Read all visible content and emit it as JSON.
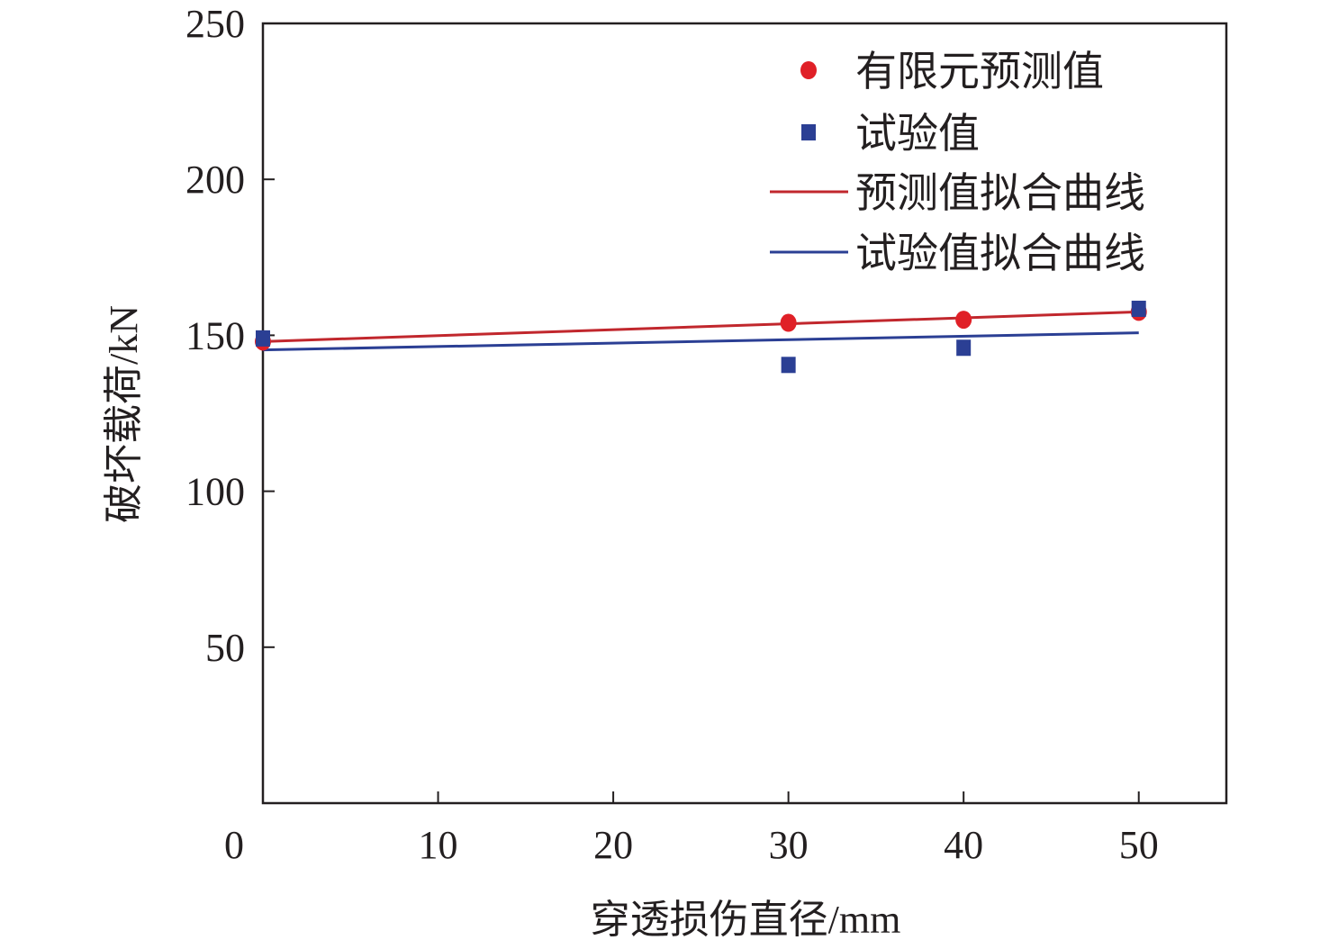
{
  "chart_data": {
    "type": "scatter",
    "title": "",
    "xlabel": "穿透损伤直径/mm",
    "ylabel": "破坏载荷/kN",
    "xlim": [
      0,
      55
    ],
    "ylim": [
      0,
      250
    ],
    "xticks": [
      0,
      10,
      20,
      30,
      40,
      50
    ],
    "yticks": [
      50,
      100,
      150,
      200,
      250
    ],
    "grid": false,
    "legend_position": "top-right",
    "series": [
      {
        "name": "有限元预测值",
        "kind": "points",
        "marker": "circle",
        "color": "#e02027",
        "x": [
          0,
          30,
          40,
          50
        ],
        "y": [
          148,
          154,
          155,
          157.5
        ]
      },
      {
        "name": "试验值",
        "kind": "points",
        "marker": "square",
        "color": "#2b3f94",
        "x": [
          0,
          30,
          40,
          50
        ],
        "y": [
          149,
          140.5,
          146,
          158.5
        ]
      },
      {
        "name": "预测值拟合曲线",
        "kind": "line",
        "color": "#c1272d",
        "x": [
          0,
          50
        ],
        "y": [
          148,
          157.5
        ]
      },
      {
        "name": "试验值拟合曲线",
        "kind": "line",
        "color": "#2b3f94",
        "x": [
          0,
          50
        ],
        "y": [
          145.3,
          150.8
        ]
      }
    ]
  }
}
